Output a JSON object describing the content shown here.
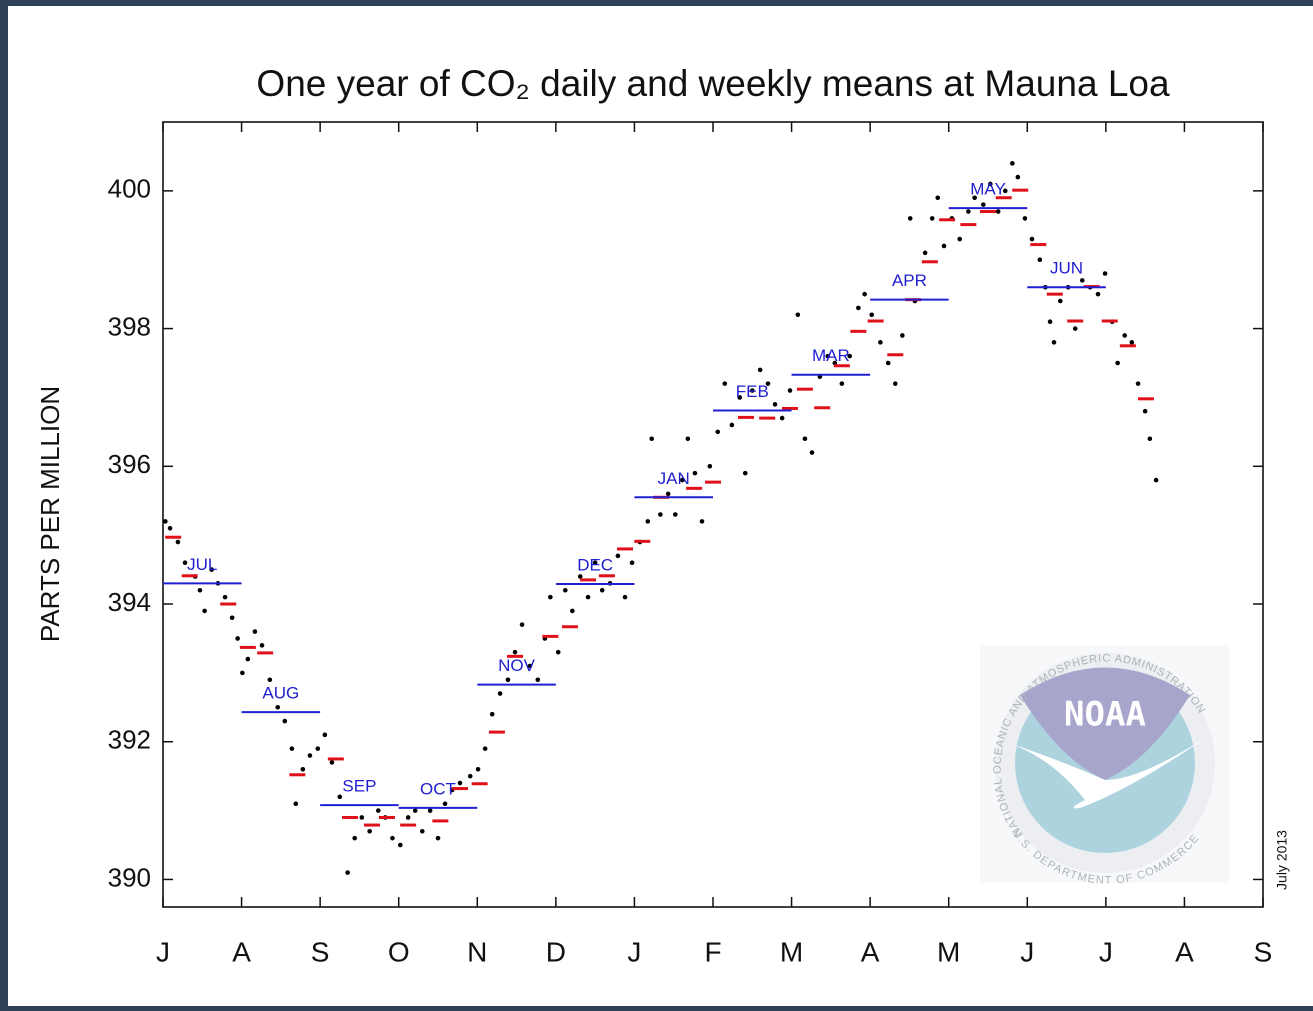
{
  "chart_data": {
    "type": "scatter",
    "title": "One year of CO₂ daily and weekly means at Mauna Loa",
    "ylabel": "PARTS PER MILLION",
    "date_note": "July 2013",
    "xlim": [
      0,
      14
    ],
    "xticks": [
      {
        "value": 0,
        "label": "J"
      },
      {
        "value": 1,
        "label": "A"
      },
      {
        "value": 2,
        "label": "S"
      },
      {
        "value": 3,
        "label": "O"
      },
      {
        "value": 4,
        "label": "N"
      },
      {
        "value": 5,
        "label": "D"
      },
      {
        "value": 6,
        "label": "J"
      },
      {
        "value": 7,
        "label": "F"
      },
      {
        "value": 8,
        "label": "M"
      },
      {
        "value": 9,
        "label": "A"
      },
      {
        "value": 10,
        "label": "M"
      },
      {
        "value": 11,
        "label": "J"
      },
      {
        "value": 12,
        "label": "J"
      },
      {
        "value": 13,
        "label": "A"
      },
      {
        "value": 14,
        "label": "S"
      }
    ],
    "ylim": [
      389.6,
      401
    ],
    "yticks": [
      390,
      392,
      394,
      396,
      398,
      400
    ],
    "daily": {
      "color": "#000000",
      "x": [
        0.03,
        0.09,
        0.19,
        0.28,
        0.41,
        0.47,
        0.53,
        0.62,
        0.7,
        0.79,
        0.88,
        0.95,
        1.01,
        1.08,
        1.17,
        1.26,
        1.36,
        1.46,
        1.55,
        1.64,
        1.69,
        1.78,
        1.87,
        1.97,
        2.06,
        2.15,
        2.25,
        2.35,
        2.44,
        2.53,
        2.63,
        2.74,
        2.83,
        2.92,
        3.02,
        3.12,
        3.21,
        3.3,
        3.4,
        3.5,
        3.59,
        3.68,
        3.78,
        3.91,
        4.01,
        4.1,
        4.19,
        4.29,
        4.39,
        4.48,
        4.57,
        4.67,
        4.77,
        4.86,
        4.93,
        5.03,
        5.12,
        5.21,
        5.31,
        5.41,
        5.5,
        5.59,
        5.69,
        5.79,
        5.88,
        5.97,
        6.07,
        6.17,
        6.22,
        6.33,
        6.43,
        6.52,
        6.61,
        6.68,
        6.77,
        6.86,
        6.96,
        7.06,
        7.15,
        7.24,
        7.34,
        7.41,
        7.5,
        7.6,
        7.7,
        7.79,
        7.88,
        7.98,
        8.08,
        8.17,
        8.26,
        8.36,
        8.46,
        8.55,
        8.64,
        8.74,
        8.85,
        8.93,
        9.02,
        9.13,
        9.23,
        9.32,
        9.41,
        9.51,
        9.57,
        9.7,
        9.79,
        9.86,
        9.94,
        10.04,
        10.14,
        10.25,
        10.33,
        10.44,
        10.53,
        10.63,
        10.72,
        10.81,
        10.88,
        10.97,
        11.06,
        11.16,
        11.23,
        11.29,
        11.34,
        11.42,
        11.52,
        11.61,
        11.7,
        11.8,
        11.9,
        11.99,
        12.08,
        12.15,
        12.24,
        12.33,
        12.41,
        12.5,
        12.56,
        12.64
      ],
      "values": [
        395.2,
        395.1,
        394.9,
        394.6,
        394.4,
        394.2,
        393.9,
        394.5,
        394.3,
        394.1,
        393.8,
        393.5,
        393.0,
        393.2,
        393.6,
        393.4,
        392.9,
        392.5,
        392.3,
        391.9,
        391.1,
        391.6,
        391.8,
        391.9,
        392.1,
        391.7,
        391.2,
        390.1,
        390.6,
        390.9,
        390.7,
        391.0,
        390.9,
        390.6,
        390.5,
        390.9,
        391.0,
        390.7,
        391.0,
        390.6,
        391.1,
        391.3,
        391.4,
        391.5,
        391.6,
        391.9,
        392.4,
        392.7,
        392.9,
        393.3,
        393.7,
        393.1,
        392.9,
        393.5,
        394.1,
        393.3,
        394.2,
        393.9,
        394.4,
        394.1,
        394.6,
        394.2,
        394.3,
        394.7,
        394.1,
        394.6,
        394.9,
        395.2,
        396.4,
        395.3,
        395.6,
        395.3,
        395.8,
        396.4,
        395.9,
        395.2,
        396.0,
        396.5,
        397.2,
        396.6,
        397.0,
        395.9,
        397.1,
        397.4,
        397.2,
        396.9,
        396.7,
        397.1,
        398.2,
        396.4,
        396.2,
        397.3,
        397.6,
        397.5,
        397.2,
        397.6,
        398.3,
        398.5,
        398.2,
        397.8,
        397.5,
        397.2,
        397.9,
        399.6,
        398.4,
        399.1,
        399.6,
        399.9,
        399.2,
        399.6,
        399.3,
        399.7,
        399.9,
        399.8,
        400.1,
        399.7,
        400.0,
        400.4,
        400.2,
        399.6,
        399.3,
        399.0,
        398.6,
        398.1,
        397.8,
        398.4,
        398.6,
        398.0,
        398.7,
        398.6,
        398.5,
        398.8,
        398.1,
        397.5,
        397.9,
        397.8,
        397.2,
        396.8,
        396.4,
        395.8
      ]
    },
    "weekly": {
      "color": "#e0101a",
      "x": [
        0.13,
        0.34,
        0.83,
        1.08,
        1.3,
        1.71,
        2.2,
        2.38,
        2.66,
        2.85,
        3.12,
        3.53,
        3.78,
        4.03,
        4.25,
        4.48,
        4.93,
        5.18,
        5.41,
        5.65,
        5.88,
        6.1,
        6.34,
        6.76,
        7.0,
        7.42,
        7.69,
        7.98,
        8.17,
        8.39,
        8.64,
        8.85,
        9.07,
        9.32,
        9.55,
        9.76,
        9.98,
        10.25,
        10.5,
        10.7,
        10.91,
        11.14,
        11.35,
        11.61,
        11.82,
        12.05,
        12.28,
        12.51
      ],
      "values": [
        394.97,
        394.41,
        394.0,
        393.37,
        393.29,
        391.52,
        391.75,
        390.9,
        390.79,
        390.9,
        390.79,
        390.85,
        391.32,
        391.39,
        392.14,
        393.24,
        393.53,
        393.67,
        394.35,
        394.41,
        394.8,
        394.91,
        395.55,
        395.68,
        395.77,
        396.71,
        396.7,
        396.84,
        397.12,
        396.85,
        397.46,
        397.96,
        398.11,
        397.62,
        398.42,
        398.97,
        399.58,
        399.51,
        399.7,
        399.9,
        400.01,
        399.22,
        398.5,
        398.11,
        398.61,
        398.11,
        397.75,
        396.98
      ]
    },
    "monthly": {
      "color": "#2020d0",
      "labels": [
        "JUL",
        "AUG",
        "SEP",
        "OCT",
        "NOV",
        "DEC",
        "JAN",
        "FEB",
        "MAR",
        "APR",
        "MAY",
        "JUN"
      ],
      "x": [
        0,
        1,
        2,
        3,
        4,
        5,
        6,
        7,
        8,
        9,
        10,
        11
      ],
      "values": [
        394.3,
        392.43,
        391.08,
        391.04,
        392.83,
        394.29,
        395.55,
        396.81,
        397.33,
        398.42,
        399.75,
        398.6
      ]
    },
    "logo": {
      "name": "NOAA",
      "ring_top": "NATIONAL OCEANIC AND ATMOSPHERIC ADMINISTRATION",
      "ring_bottom": "U.S. DEPARTMENT OF COMMERCE"
    }
  }
}
